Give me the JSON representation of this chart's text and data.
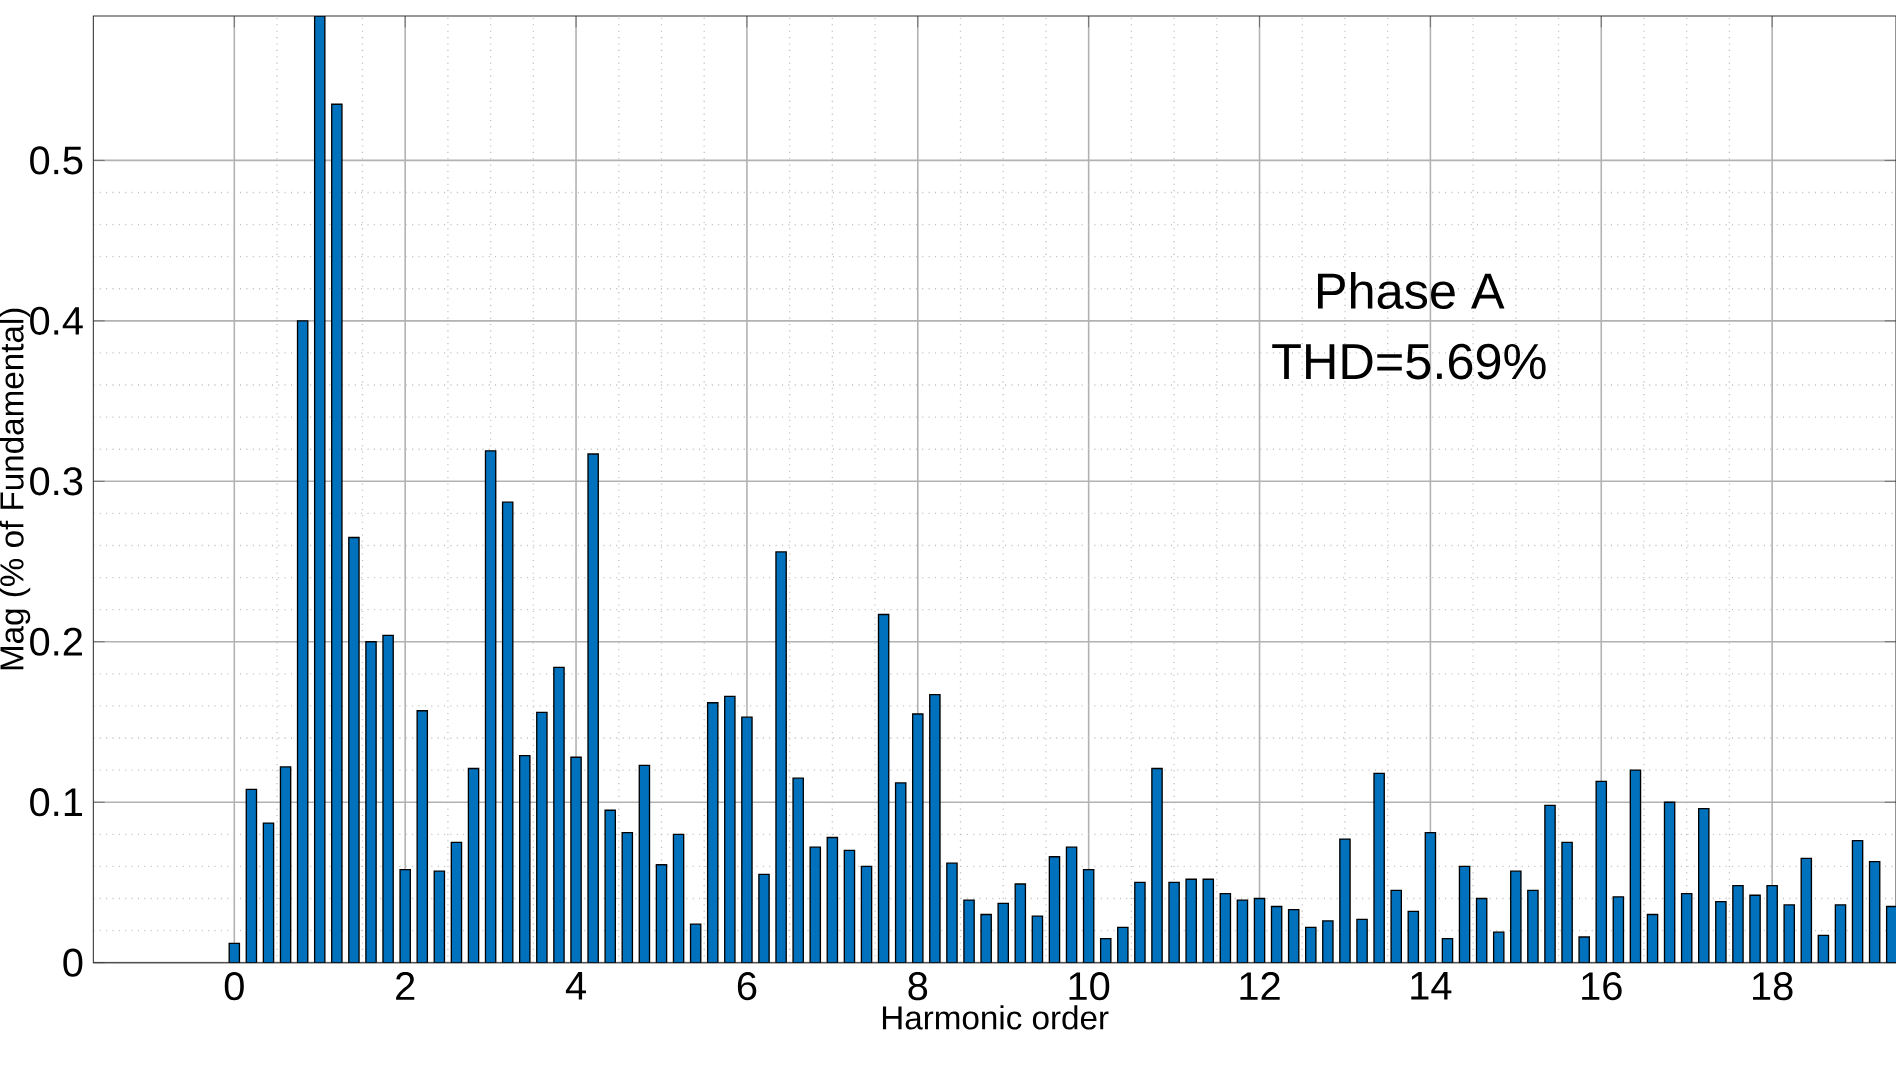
{
  "chart_data": {
    "type": "bar",
    "xlabel": "Harmonic order",
    "ylabel": "Mag (% of Fundamental)",
    "annotations": [
      "Phase A",
      "THD=5.69%"
    ],
    "x": [
      0,
      0.2,
      0.4,
      0.6,
      0.8,
      1,
      1.2,
      1.4,
      1.6,
      1.8,
      2,
      2.2,
      2.4,
      2.6,
      2.8,
      3,
      3.2,
      3.4,
      3.6,
      3.8,
      4,
      4.2,
      4.4,
      4.6,
      4.8,
      5,
      5.2,
      5.4,
      5.6,
      5.8,
      6,
      6.2,
      6.4,
      6.6,
      6.8,
      7,
      7.2,
      7.4,
      7.6,
      7.8,
      8,
      8.2,
      8.4,
      8.6,
      8.8,
      9,
      9.2,
      9.4,
      9.6,
      9.8,
      10,
      10.2,
      10.4,
      10.6,
      10.8,
      11,
      11.2,
      11.4,
      11.6,
      11.8,
      12,
      12.2,
      12.4,
      12.6,
      12.8,
      13,
      13.2,
      13.4,
      13.6,
      13.8,
      14,
      14.2,
      14.4,
      14.6,
      14.8,
      15,
      15.2,
      15.4,
      15.6,
      15.8,
      16,
      16.2,
      16.4,
      16.6,
      16.8,
      17,
      17.2,
      17.4,
      17.6,
      17.8,
      18,
      18.2,
      18.4,
      18.6,
      18.8,
      19,
      19.2,
      19.4
    ],
    "values": [
      0.012,
      0.108,
      0.087,
      0.122,
      0.4,
      0.59,
      0.535,
      0.265,
      0.2,
      0.204,
      0.058,
      0.157,
      0.057,
      0.075,
      0.121,
      0.319,
      0.287,
      0.129,
      0.156,
      0.184,
      0.128,
      0.317,
      0.095,
      0.081,
      0.123,
      0.061,
      0.08,
      0.024,
      0.162,
      0.166,
      0.153,
      0.055,
      0.256,
      0.115,
      0.072,
      0.078,
      0.07,
      0.06,
      0.217,
      0.112,
      0.155,
      0.167,
      0.062,
      0.039,
      0.03,
      0.037,
      0.049,
      0.029,
      0.066,
      0.072,
      0.058,
      0.015,
      0.022,
      0.05,
      0.121,
      0.05,
      0.052,
      0.052,
      0.043,
      0.039,
      0.04,
      0.035,
      0.033,
      0.022,
      0.026,
      0.077,
      0.027,
      0.118,
      0.045,
      0.032,
      0.081,
      0.015,
      0.06,
      0.04,
      0.019,
      0.057,
      0.045,
      0.098,
      0.075,
      0.016,
      0.113,
      0.041,
      0.12,
      0.03,
      0.1,
      0.043,
      0.096,
      0.038,
      0.048,
      0.042,
      0.048,
      0.036,
      0.065,
      0.017,
      0.036,
      0.076,
      0.063,
      0.035
    ],
    "color": "#0072bd",
    "xlim": [
      -1.65,
      19.45
    ],
    "ylim": [
      0,
      0.59
    ],
    "xticks": [
      0,
      2,
      4,
      6,
      8,
      10,
      12,
      14,
      16,
      18
    ],
    "yticks": [
      0,
      0.1,
      0.2,
      0.3,
      0.4,
      0.5
    ],
    "grid": true
  }
}
